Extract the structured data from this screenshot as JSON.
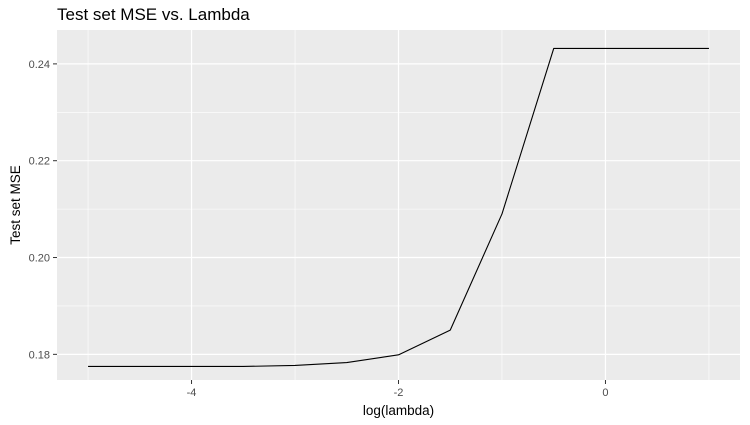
{
  "chart_data": {
    "type": "line",
    "title": "Test set MSE vs. Lambda",
    "xlabel": "log(lambda)",
    "ylabel": "Test set MSE",
    "xlim": [
      -5.3,
      1.3
    ],
    "ylim": [
      0.1747,
      0.247
    ],
    "x_ticks": [
      -4,
      -2,
      0
    ],
    "x_tick_labels": [
      "-4",
      "-2",
      "0"
    ],
    "y_ticks": [
      0.18,
      0.2,
      0.22,
      0.24
    ],
    "y_tick_labels": [
      "0.18",
      "0.20",
      "0.22",
      "0.24"
    ],
    "grid": true,
    "background": "#ebebeb",
    "grid_color": "#ffffff",
    "line_color": "#000000",
    "series": [
      {
        "x": [
          -5.0,
          -4.5,
          -4.0,
          -3.5,
          -3.0,
          -2.5,
          -2.0,
          -1.5,
          -1.0,
          -0.5,
          0.0,
          0.5,
          1.0
        ],
        "y": [
          0.1775,
          0.1775,
          0.1775,
          0.1775,
          0.1777,
          0.1783,
          0.1799,
          0.185,
          0.209,
          0.2432,
          0.2432,
          0.2432,
          0.2432
        ]
      }
    ]
  }
}
